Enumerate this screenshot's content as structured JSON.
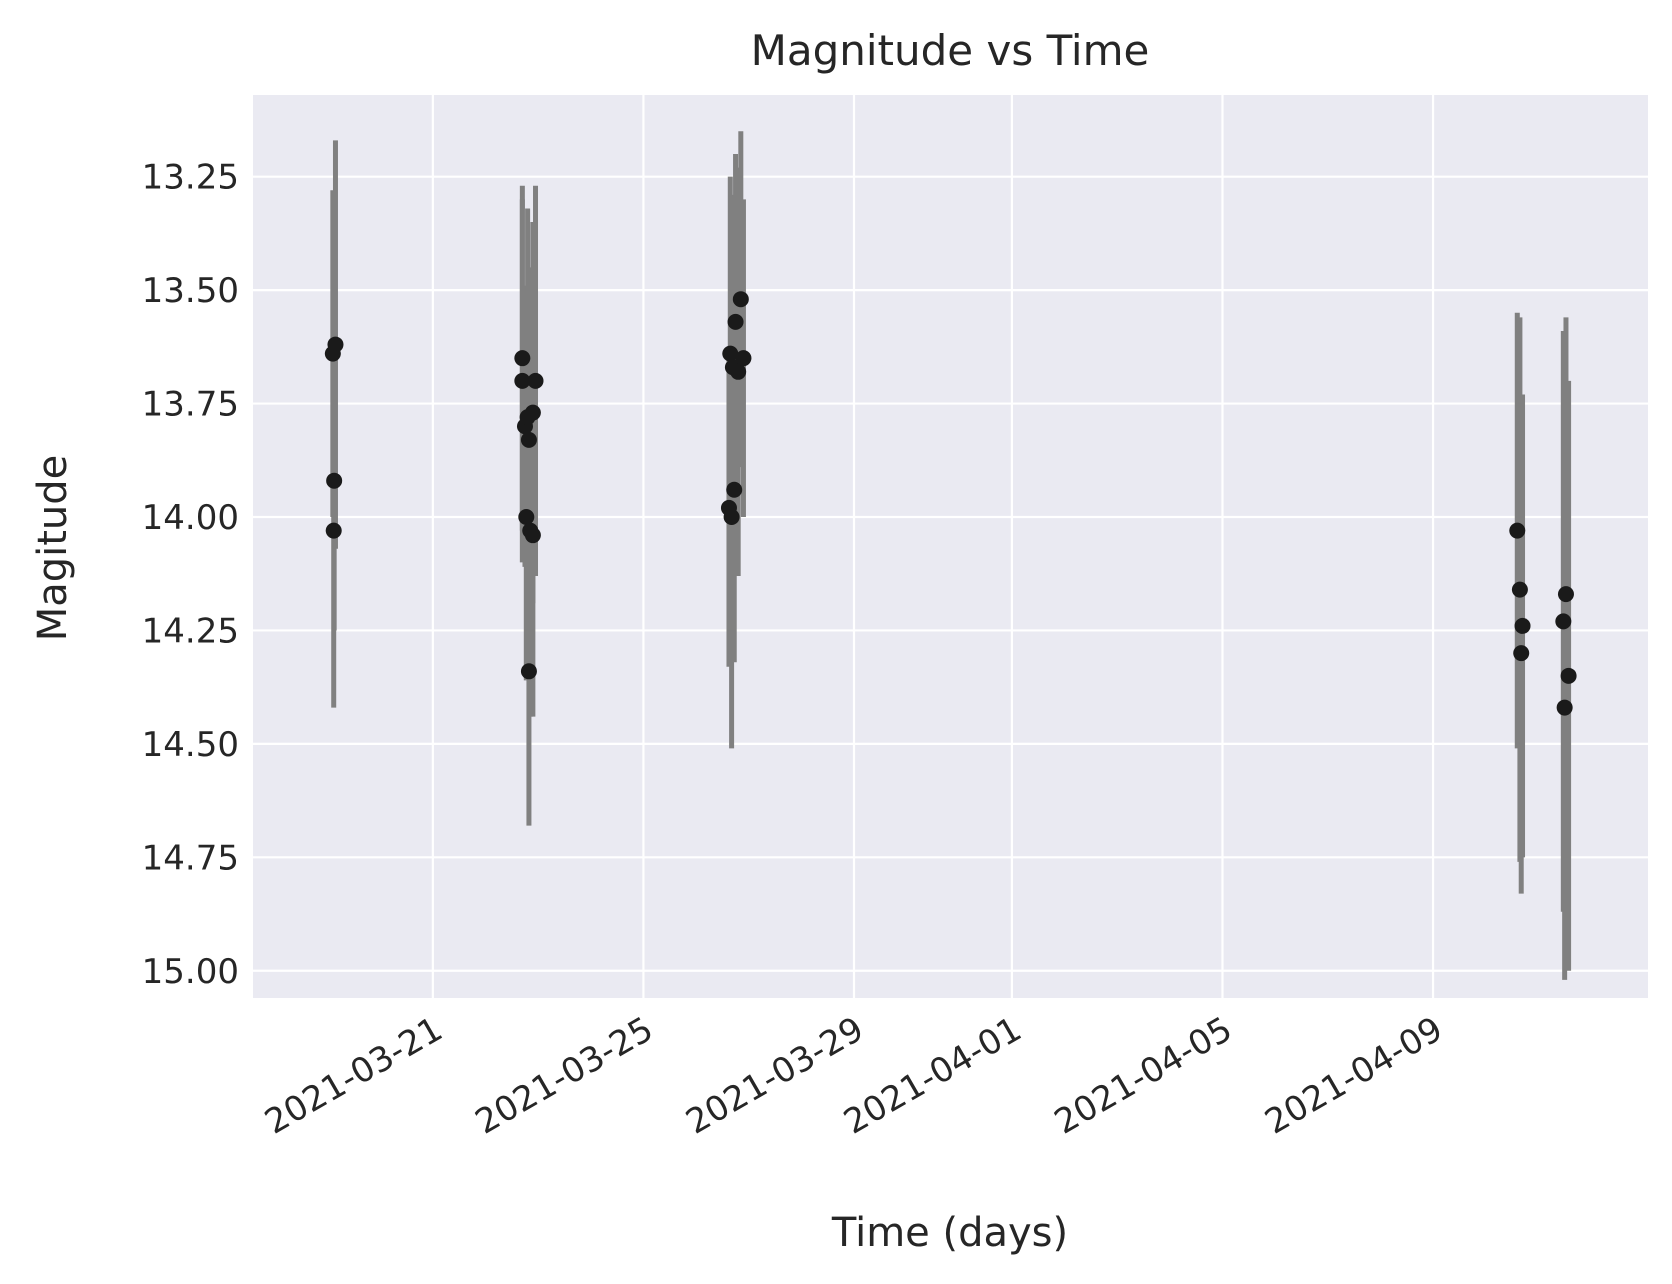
{
  "chart_data": {
    "type": "scatter",
    "title": "Magnitude vs Time",
    "xlabel": "Time (days)",
    "ylabel": "Magitude",
    "y_inverted": true,
    "ylim": [
      15.06,
      13.07
    ],
    "xlim": [
      "2021-03-17T14:00",
      "2021-04-13T02:00"
    ],
    "x_ticks": [
      {
        "date": "2021-03-21",
        "label": "2021-03-21"
      },
      {
        "date": "2021-03-25",
        "label": "2021-03-25"
      },
      {
        "date": "2021-03-29",
        "label": "2021-03-29"
      },
      {
        "date": "2021-04-01",
        "label": "2021-04-01"
      },
      {
        "date": "2021-04-05",
        "label": "2021-04-05"
      },
      {
        "date": "2021-04-09",
        "label": "2021-04-09"
      }
    ],
    "y_ticks": [
      13.25,
      13.5,
      13.75,
      14.0,
      14.25,
      14.5,
      14.75,
      15.0
    ],
    "y_tick_labels": [
      "13.25",
      "13.50",
      "13.75",
      "14.00",
      "14.25",
      "14.50",
      "14.75",
      "15.00"
    ],
    "grid": true,
    "colors": {
      "background": "#eaeaf2",
      "grid": "#ffffff",
      "point": "#1a1a1a",
      "errorbar": "#808080",
      "text": "#262626"
    },
    "points": [
      {
        "t": "2021-03-19T02:24",
        "mag": 13.64,
        "err": 0.36
      },
      {
        "t": "2021-03-19T03:36",
        "mag": 13.62,
        "err": 0.45
      },
      {
        "t": "2021-03-19T03:00",
        "mag": 13.92,
        "err": 0.33
      },
      {
        "t": "2021-03-19T02:48",
        "mag": 14.03,
        "err": 0.39
      },
      {
        "t": "2021-03-22T16:48",
        "mag": 13.65,
        "err": 0.38
      },
      {
        "t": "2021-03-22T16:48",
        "mag": 13.7,
        "err": 0.4
      },
      {
        "t": "2021-03-22T18:00",
        "mag": 13.8,
        "err": 0.31
      },
      {
        "t": "2021-03-22T19:12",
        "mag": 13.78,
        "err": 0.46
      },
      {
        "t": "2021-03-22T19:48",
        "mag": 13.83,
        "err": 0.38
      },
      {
        "t": "2021-03-22T21:36",
        "mag": 13.77,
        "err": 0.42
      },
      {
        "t": "2021-03-22T22:48",
        "mag": 13.7,
        "err": 0.43
      },
      {
        "t": "2021-03-22T18:36",
        "mag": 14.0,
        "err": 0.36
      },
      {
        "t": "2021-03-22T20:24",
        "mag": 14.03,
        "err": 0.41
      },
      {
        "t": "2021-03-22T21:36",
        "mag": 14.04,
        "err": 0.4
      },
      {
        "t": "2021-03-22T19:48",
        "mag": 14.34,
        "err": 0.34
      },
      {
        "t": "2021-03-26T15:36",
        "mag": 13.64,
        "err": 0.39
      },
      {
        "t": "2021-03-26T16:48",
        "mag": 13.67,
        "err": 0.38
      },
      {
        "t": "2021-03-26T18:00",
        "mag": 13.57,
        "err": 0.37
      },
      {
        "t": "2021-03-26T19:12",
        "mag": 13.68,
        "err": 0.45
      },
      {
        "t": "2021-03-26T20:24",
        "mag": 13.52,
        "err": 0.37
      },
      {
        "t": "2021-03-26T21:36",
        "mag": 13.65,
        "err": 0.35
      },
      {
        "t": "2021-03-26T15:00",
        "mag": 13.98,
        "err": 0.35
      },
      {
        "t": "2021-03-26T16:12",
        "mag": 14.0,
        "err": 0.51
      },
      {
        "t": "2021-03-26T17:24",
        "mag": 13.94,
        "err": 0.38
      },
      {
        "t": "2021-04-10T14:24",
        "mag": 14.03,
        "err": 0.48
      },
      {
        "t": "2021-04-10T15:36",
        "mag": 14.16,
        "err": 0.6
      },
      {
        "t": "2021-04-10T16:48",
        "mag": 14.24,
        "err": 0.51
      },
      {
        "t": "2021-04-10T16:12",
        "mag": 14.3,
        "err": 0.53
      },
      {
        "t": "2021-04-11T11:24",
        "mag": 14.23,
        "err": 0.64
      },
      {
        "t": "2021-04-11T12:36",
        "mag": 14.17,
        "err": 0.61
      },
      {
        "t": "2021-04-11T13:48",
        "mag": 14.35,
        "err": 0.65
      },
      {
        "t": "2021-04-11T12:00",
        "mag": 14.42,
        "err": 0.6
      }
    ]
  }
}
